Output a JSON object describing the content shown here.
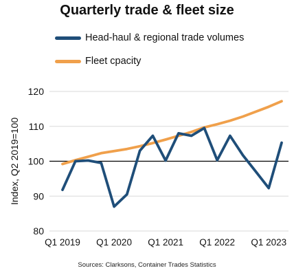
{
  "chart_data": {
    "type": "line",
    "title": "Quarterly trade & fleet size",
    "ylabel": "Index, Q2 2019=100",
    "xlabel": "",
    "ylim": [
      80,
      120
    ],
    "yticks": [
      80,
      90,
      100,
      110,
      120
    ],
    "x": [
      "Q1 2019",
      "Q2 2019",
      "Q3 2019",
      "Q4 2019",
      "Q1 2020",
      "Q2 2020",
      "Q3 2020",
      "Q4 2020",
      "Q1 2021",
      "Q2 2021",
      "Q3 2021",
      "Q4 2021",
      "Q1 2022",
      "Q2 2022",
      "Q3 2022",
      "Q4 2022",
      "Q1 2023",
      "Q2 2023"
    ],
    "xtick_labels": [
      "Q1 2019",
      "Q1 2020",
      "Q1 2021",
      "Q1 2022",
      "Q1 2023"
    ],
    "xtick_indices": [
      0,
      4,
      8,
      12,
      16
    ],
    "grid": true,
    "legend_position": "top",
    "series": [
      {
        "name": "Head-haul & regional trade volumes",
        "color": "#1f4e79",
        "values": [
          91.8,
          100.0,
          100.2,
          99.5,
          87.0,
          90.5,
          103.0,
          107.3,
          100.2,
          108.0,
          107.3,
          109.5,
          100.3,
          107.3,
          101.7,
          97.0,
          92.3,
          105.3
        ]
      },
      {
        "name": "Fleet cpacity",
        "color": "#f0a04b",
        "values": [
          99.2,
          100.3,
          101.3,
          102.3,
          102.9,
          103.5,
          104.3,
          105.2,
          106.2,
          107.3,
          108.4,
          109.7,
          110.6,
          111.6,
          112.8,
          114.2,
          115.6,
          117.2
        ]
      }
    ],
    "source": "Sources: Clarksons, Container Trades Statistics"
  }
}
